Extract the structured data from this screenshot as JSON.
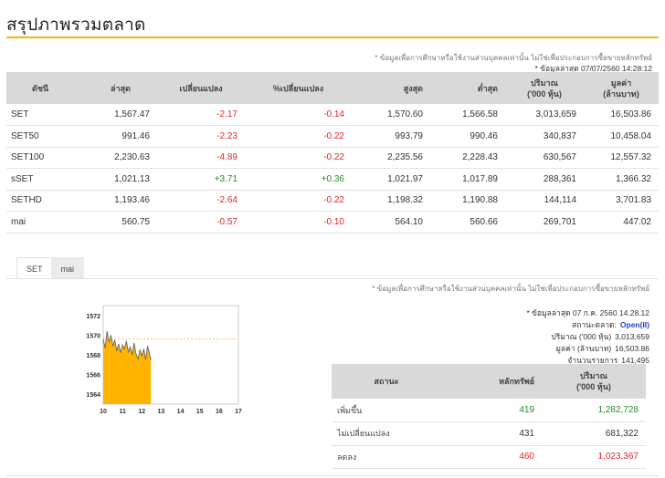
{
  "header": {
    "title": "สรุปภาพรวมตลาด"
  },
  "notes": {
    "disclaimer_top": "* ข้อมูลเพื่อการศึกษาหรือใช้งานส่วนบุคคลเท่านั้น ไม่ใช่เพื่อประกอบการซื้อขายหลักทรัพย์",
    "updated_top": "* ข้อมูลล่าสุด 07/07/2560 14:28:12",
    "disclaimer_bottom": "* ข้อมูลเพื่อการศึกษาหรือใช้งานส่วนบุคคลเท่านั้น ไม่ใช่เพื่อประกอบการซื้อขายหลักทรัพย์",
    "updated_bottom": "* ข้อมูลล่าสุด 07 ก.ค. 2560 14.28.12"
  },
  "market_table": {
    "headers": [
      "ดัชนี",
      "ล่าสุด",
      "เปลี่ยนแปลง",
      "%เปลี่ยนแปลง",
      "สูงสุด",
      "ต่ำสุด",
      "ปริมาณ\n('000 หุ้น)",
      "มูลค่า\n(ล้านบาท)"
    ],
    "rows": [
      [
        "SET",
        "1,567.47",
        "-2.17",
        "-0.14",
        "1,570.60",
        "1,566.58",
        "3,013,659",
        "16,503.86"
      ],
      [
        "SET50",
        "991.46",
        "-2.23",
        "-0.22",
        "993.79",
        "990.46",
        "340,837",
        "10,458.04"
      ],
      [
        "SET100",
        "2,230.63",
        "-4.89",
        "-0.22",
        "2,235.56",
        "2,228.43",
        "630,567",
        "12,557.32"
      ],
      [
        "sSET",
        "1,021.13",
        "+3.71",
        "+0.36",
        "1,021.97",
        "1,017.89",
        "288,361",
        "1,366.32"
      ],
      [
        "SETHD",
        "1,193.46",
        "-2.64",
        "-0.22",
        "1,198.32",
        "1,190.88",
        "144,114",
        "3,701.83"
      ],
      [
        "mai",
        "560.75",
        "-0.57",
        "-0.10",
        "564.10",
        "560.66",
        "269,701",
        "447.02"
      ]
    ]
  },
  "tabs": [
    "SET",
    "mai"
  ],
  "market_status": {
    "status_label": "สถานะตลาด:",
    "status_value": "Open(II)",
    "volume_label": "ปริมาณ ('000 หุ้น)",
    "volume_value": "3,013,659",
    "value_label": "มูลค่า (ล้านบาท)",
    "value_value": "16,503.86",
    "trades_label": "จำนวนรายการ",
    "trades_value": "141,495"
  },
  "summary_table": {
    "headers": [
      "สถานะ",
      "หลักทรัพย์",
      "ปริมาณ\n('000 หุ้น)"
    ],
    "rows": [
      [
        "เพิ่มขึ้น",
        "419",
        "1,282,728"
      ],
      [
        "ไม่เปลี่ยนแปลง",
        "431",
        "681,322"
      ],
      [
        "ลดลง",
        "460",
        "1,023,367"
      ]
    ]
  },
  "colors": {
    "accent": "#f5b21d",
    "negative": "#e0262b",
    "positive": "#2a8a2a",
    "link": "#2f6fb4",
    "area_fill": "#ffb400"
  },
  "chart_data": {
    "type": "area",
    "x_ticks": [
      "10",
      "11",
      "12",
      "13",
      "14",
      "15",
      "16",
      "17"
    ],
    "y_ticks": [
      "1572",
      "1570",
      "1568",
      "1566",
      "1564"
    ],
    "xlim": [
      10,
      17
    ],
    "ylim": [
      1563,
      1573
    ],
    "reference_line": 1569.64,
    "series": [
      {
        "x": [
          10.0,
          10.1,
          10.2,
          10.3,
          10.4,
          10.5,
          10.6,
          10.7,
          10.8,
          10.9,
          11.0,
          11.1,
          11.2,
          11.3,
          11.4,
          11.5,
          11.6,
          11.7,
          11.8,
          11.9,
          12.0,
          12.1,
          12.2,
          12.3,
          12.47
        ],
        "y": [
          1569.6,
          1568.7,
          1570.4,
          1569.3,
          1570.0,
          1568.9,
          1569.5,
          1568.4,
          1569.1,
          1568.2,
          1569.0,
          1568.6,
          1569.4,
          1568.3,
          1568.8,
          1568.0,
          1569.2,
          1568.1,
          1567.6,
          1568.5,
          1567.9,
          1568.6,
          1567.5,
          1568.9,
          1567.47
        ]
      }
    ]
  }
}
